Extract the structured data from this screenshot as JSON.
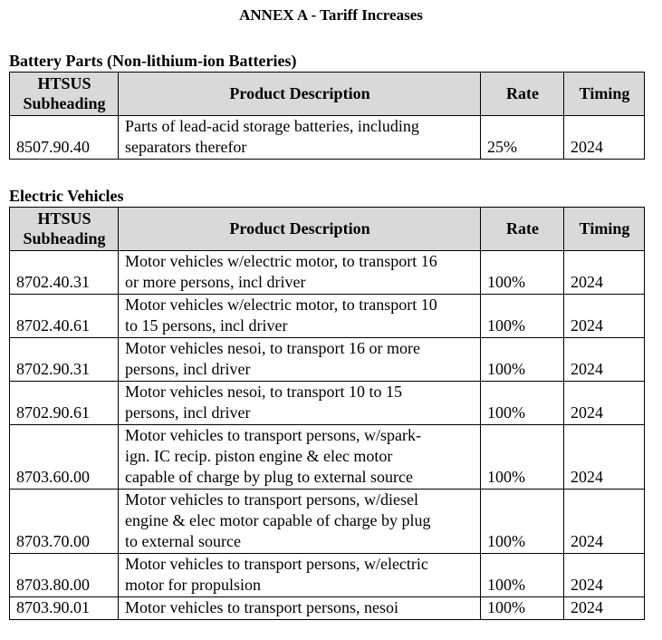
{
  "title": "ANNEX A - Tariff Increases",
  "sections": [
    {
      "heading": "Battery Parts (Non-lithium-ion Batteries)",
      "columns": [
        [
          "HTSUS",
          "Subheading"
        ],
        [
          "Product Description"
        ],
        [
          "Rate"
        ],
        [
          "Timing"
        ]
      ],
      "rows": [
        {
          "code": "8507.90.40",
          "description": [
            "Parts of lead-acid storage batteries, including",
            "separators therefor"
          ],
          "rate": "25%",
          "timing": "2024"
        }
      ]
    },
    {
      "heading": "Electric Vehicles",
      "columns": [
        [
          "HTSUS",
          "Subheading"
        ],
        [
          "Product Description"
        ],
        [
          "Rate"
        ],
        [
          "Timing"
        ]
      ],
      "rows": [
        {
          "code": "8702.40.31",
          "description": [
            "Motor vehicles w/electric motor, to transport 16",
            "or more persons, incl driver"
          ],
          "rate": "100%",
          "timing": "2024"
        },
        {
          "code": "8702.40.61",
          "description": [
            "Motor vehicles w/electric motor, to transport 10",
            "to 15 persons, incl driver"
          ],
          "rate": "100%",
          "timing": "2024"
        },
        {
          "code": "8702.90.31",
          "description": [
            "Motor vehicles nesoi, to transport 16 or more",
            "persons, incl driver"
          ],
          "rate": "100%",
          "timing": "2024"
        },
        {
          "code": "8702.90.61",
          "description": [
            "Motor vehicles nesoi, to transport 10 to 15",
            "persons, incl driver"
          ],
          "rate": "100%",
          "timing": "2024"
        },
        {
          "code": "8703.60.00",
          "description": [
            "Motor vehicles to transport persons, w/spark-",
            "ign. IC recip. piston engine & elec motor",
            "capable of charge by plug to external source"
          ],
          "rate": "100%",
          "timing": "2024"
        },
        {
          "code": "8703.70.00",
          "description": [
            "Motor vehicles to transport persons, w/diesel",
            "engine & elec motor capable of charge by plug",
            "to external source"
          ],
          "rate": "100%",
          "timing": "2024"
        },
        {
          "code": "8703.80.00",
          "description": [
            "Motor vehicles to transport persons, w/electric",
            "motor for propulsion"
          ],
          "rate": "100%",
          "timing": "2024"
        },
        {
          "code": "8703.90.01",
          "description": [
            "Motor vehicles to transport persons, nesoi"
          ],
          "rate": "100%",
          "timing": "2024"
        }
      ]
    }
  ]
}
